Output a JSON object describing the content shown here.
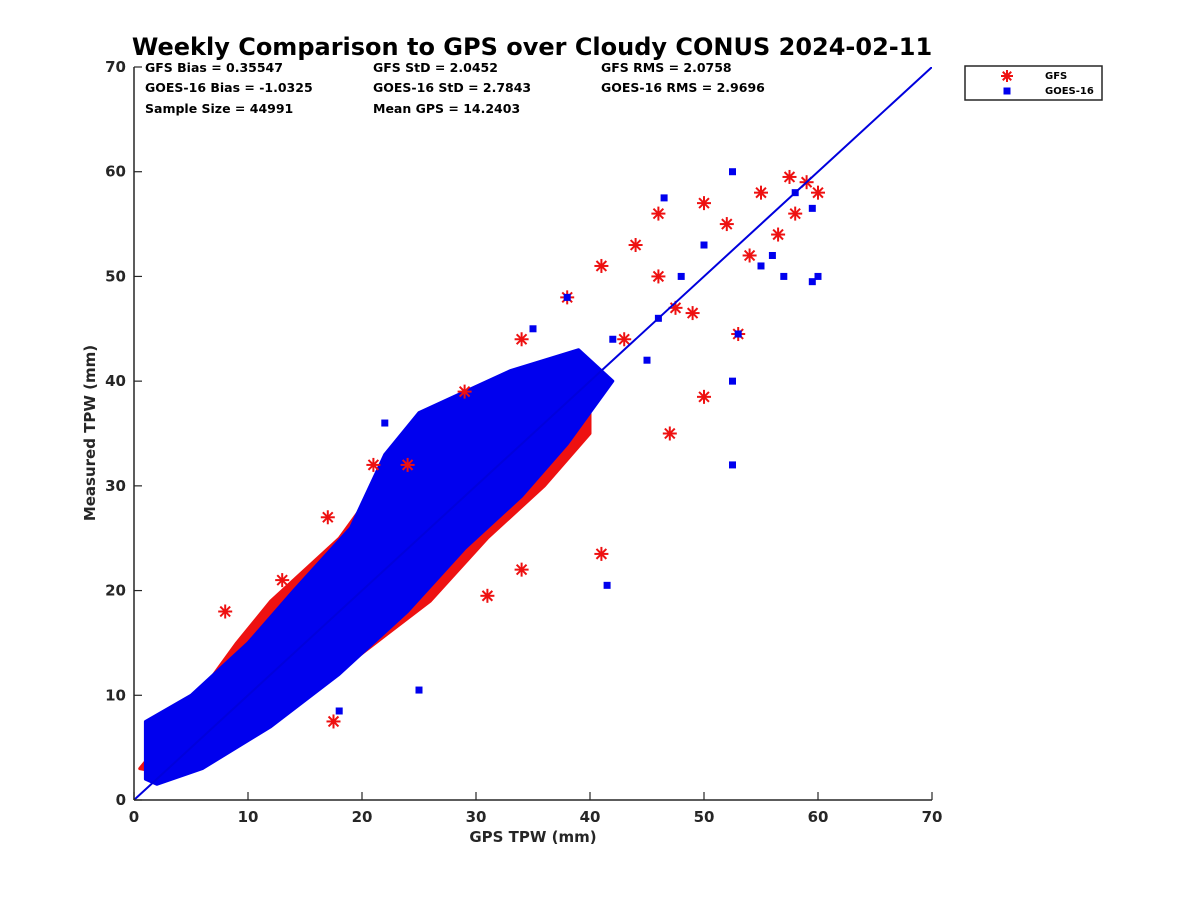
{
  "chart_data": {
    "type": "scatter",
    "title": "Weekly Comparison to GPS over Cloudy CONUS 2024-02-11",
    "xlabel": "GPS TPW (mm)",
    "ylabel": "Measured TPW (mm)",
    "xlim": [
      0,
      70
    ],
    "ylim": [
      0,
      70
    ],
    "xticks": [
      "0",
      "10",
      "20",
      "30",
      "40",
      "50",
      "60",
      "70"
    ],
    "yticks": [
      "0",
      "10",
      "20",
      "30",
      "40",
      "50",
      "60",
      "70"
    ],
    "grid": false,
    "legend_position": "outside-top-right",
    "stats": [
      [
        "GFS Bias = 0.35547",
        "GFS StD = 2.0452",
        "GFS RMS = 2.0758"
      ],
      [
        "GOES-16 Bias = -1.0325",
        "GOES-16 StD = 2.7843",
        "GOES-16 RMS = 2.9696"
      ],
      [
        "Sample Size = 44991",
        "Mean GPS = 14.2403"
      ]
    ],
    "reference_line": {
      "x": [
        0,
        70
      ],
      "y": [
        0,
        70
      ],
      "color": "#0000dd"
    },
    "series": [
      {
        "name": "GFS",
        "marker": "asterisk",
        "color": "#ee1111",
        "cloud": [
          [
            0.5,
            3
          ],
          [
            5,
            9
          ],
          [
            9,
            15
          ],
          [
            12,
            19
          ],
          [
            18,
            25
          ],
          [
            22,
            31
          ],
          [
            27,
            35
          ],
          [
            32,
            38
          ],
          [
            37,
            41
          ],
          [
            40,
            41
          ],
          [
            40,
            35
          ],
          [
            36,
            30
          ],
          [
            31,
            25
          ],
          [
            26,
            19
          ],
          [
            20,
            14
          ],
          [
            14,
            9
          ],
          [
            8,
            5
          ],
          [
            3,
            2.5
          ]
        ],
        "points": [
          [
            57.5,
            59.5
          ],
          [
            55,
            58
          ],
          [
            50,
            57
          ],
          [
            46,
            56
          ],
          [
            52,
            55
          ],
          [
            44,
            53
          ],
          [
            54,
            52
          ],
          [
            41,
            51
          ],
          [
            46,
            50
          ],
          [
            38,
            48
          ],
          [
            53,
            44.5
          ],
          [
            43,
            44
          ],
          [
            34,
            44
          ],
          [
            47.5,
            47
          ],
          [
            50,
            38.5
          ],
          [
            47,
            35
          ],
          [
            41,
            23.5
          ],
          [
            31,
            19.5
          ],
          [
            34,
            22
          ],
          [
            29,
            39
          ],
          [
            24,
            32
          ],
          [
            17,
            27
          ],
          [
            13,
            21
          ],
          [
            8,
            18
          ],
          [
            17.5,
            7.5
          ],
          [
            21,
            32
          ],
          [
            49,
            46.5
          ],
          [
            58,
            56
          ],
          [
            56.5,
            54
          ],
          [
            59,
            59
          ],
          [
            60,
            58
          ]
        ]
      },
      {
        "name": "GOES-16",
        "marker": "square",
        "color": "#0000ee",
        "cloud": [
          [
            1,
            2
          ],
          [
            1,
            7.5
          ],
          [
            5,
            10
          ],
          [
            10,
            15
          ],
          [
            14,
            20
          ],
          [
            19,
            26
          ],
          [
            22,
            33
          ],
          [
            25,
            37
          ],
          [
            33,
            41
          ],
          [
            39,
            43
          ],
          [
            42,
            40
          ],
          [
            38,
            34
          ],
          [
            34,
            29
          ],
          [
            29,
            24
          ],
          [
            24,
            18
          ],
          [
            18,
            12
          ],
          [
            12,
            7
          ],
          [
            6,
            3
          ],
          [
            2,
            1.5
          ]
        ],
        "points": [
          [
            46.5,
            57.5
          ],
          [
            52.5,
            60
          ],
          [
            59.5,
            56.5
          ],
          [
            55,
            51
          ],
          [
            57,
            50
          ],
          [
            60,
            50
          ],
          [
            59.5,
            49.5
          ],
          [
            52.5,
            32
          ],
          [
            41.5,
            20.5
          ],
          [
            25,
            10.5
          ],
          [
            18,
            8.5
          ],
          [
            35,
            45
          ],
          [
            38,
            48
          ],
          [
            42,
            44
          ],
          [
            45,
            42
          ],
          [
            52.5,
            40
          ],
          [
            48,
            50
          ],
          [
            50,
            53
          ],
          [
            56,
            52
          ],
          [
            53,
            44.5
          ],
          [
            22,
            36
          ],
          [
            15,
            18.5
          ],
          [
            10,
            10
          ],
          [
            27,
            37
          ],
          [
            46,
            46
          ],
          [
            58,
            58
          ]
        ]
      }
    ]
  }
}
